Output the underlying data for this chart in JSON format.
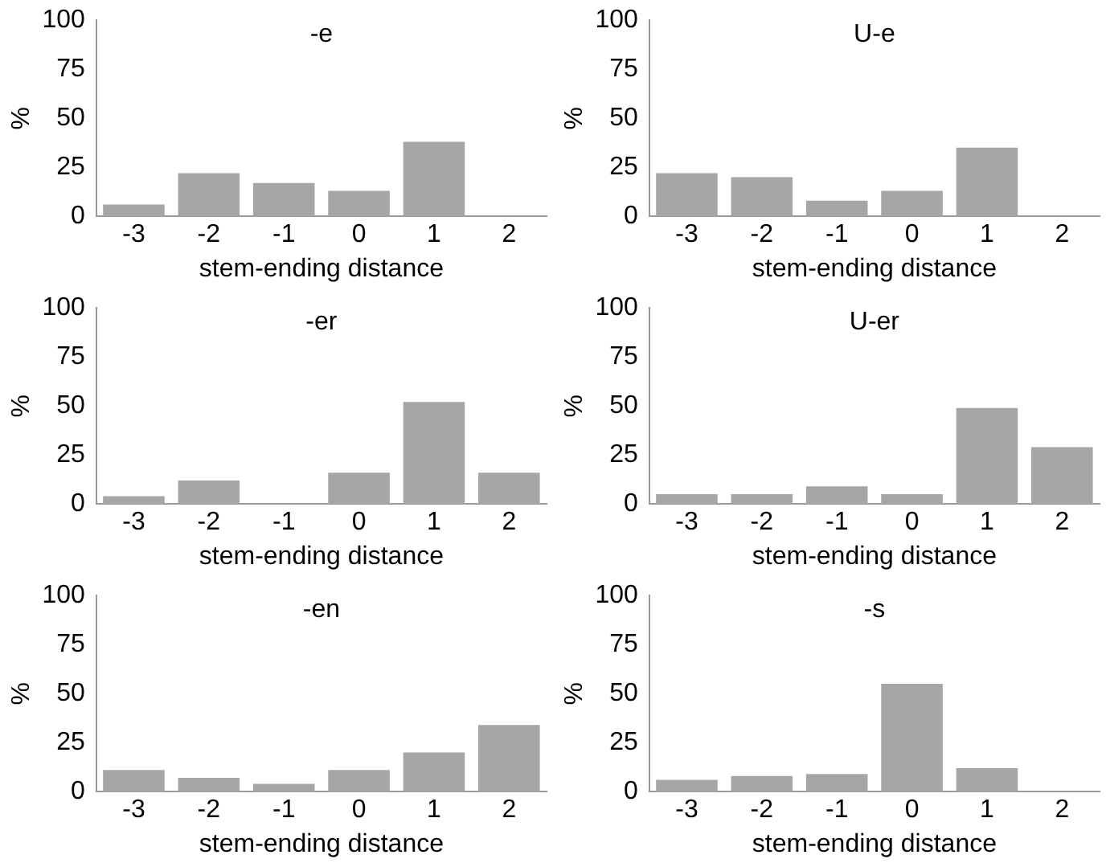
{
  "chart_data": [
    {
      "type": "bar",
      "title": "-e",
      "xlabel": "stem-ending distance",
      "ylabel": "%",
      "categories": [
        "-3",
        "-2",
        "-1",
        "0",
        "1",
        "2"
      ],
      "values": [
        6,
        22,
        17,
        13,
        38,
        0
      ],
      "color": "#a6a6a6",
      "ylim": [
        0,
        100
      ],
      "yticks": [
        0,
        25,
        50,
        75,
        100
      ]
    },
    {
      "type": "bar",
      "title": "U-e",
      "xlabel": "stem-ending distance",
      "ylabel": "%",
      "categories": [
        "-3",
        "-2",
        "-1",
        "0",
        "1",
        "2"
      ],
      "values": [
        22,
        20,
        8,
        13,
        35,
        0
      ],
      "color": "#a6a6a6",
      "ylim": [
        0,
        100
      ],
      "yticks": [
        0,
        25,
        50,
        75,
        100
      ]
    },
    {
      "type": "bar",
      "title": "-er",
      "xlabel": "stem-ending distance",
      "ylabel": "%",
      "categories": [
        "-3",
        "-2",
        "-1",
        "0",
        "1",
        "2"
      ],
      "values": [
        4,
        12,
        0,
        16,
        52,
        16
      ],
      "color": "#a6a6a6",
      "ylim": [
        0,
        100
      ],
      "yticks": [
        0,
        25,
        50,
        75,
        100
      ]
    },
    {
      "type": "bar",
      "title": "U-er",
      "xlabel": "stem-ending distance",
      "ylabel": "%",
      "categories": [
        "-3",
        "-2",
        "-1",
        "0",
        "1",
        "2"
      ],
      "values": [
        5,
        5,
        9,
        5,
        49,
        29
      ],
      "color": "#a6a6a6",
      "ylim": [
        0,
        100
      ],
      "yticks": [
        0,
        25,
        50,
        75,
        100
      ]
    },
    {
      "type": "bar",
      "title": "-en",
      "xlabel": "stem-ending distance",
      "ylabel": "%",
      "categories": [
        "-3",
        "-2",
        "-1",
        "0",
        "1",
        "2"
      ],
      "values": [
        11,
        7,
        4,
        11,
        20,
        34
      ],
      "color": "#a6a6a6",
      "ylim": [
        0,
        100
      ],
      "yticks": [
        0,
        25,
        50,
        75,
        100
      ]
    },
    {
      "type": "bar",
      "title": "-s",
      "xlabel": "stem-ending distance",
      "ylabel": "%",
      "categories": [
        "-3",
        "-2",
        "-1",
        "0",
        "1",
        "2"
      ],
      "values": [
        6,
        8,
        9,
        55,
        12,
        0
      ],
      "color": "#a6a6a6",
      "ylim": [
        0,
        100
      ],
      "yticks": [
        0,
        25,
        50,
        75,
        100
      ]
    }
  ]
}
